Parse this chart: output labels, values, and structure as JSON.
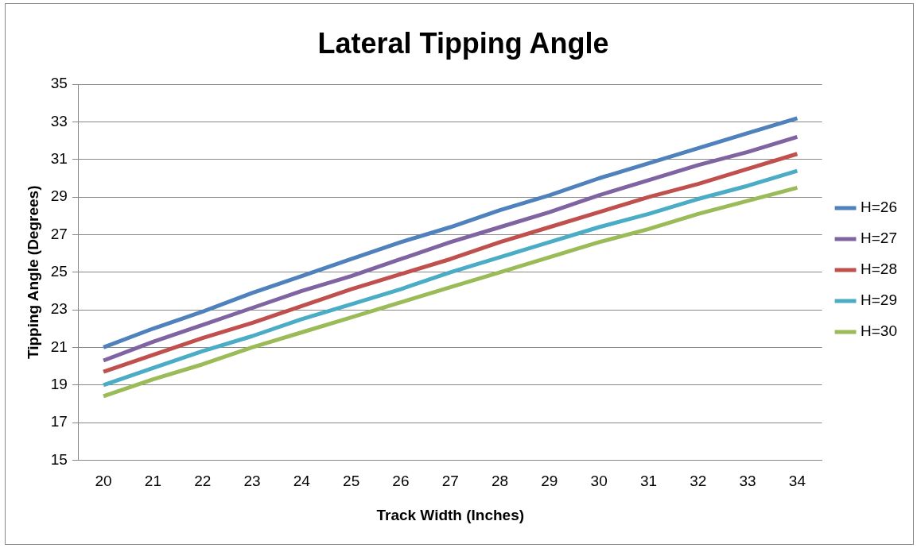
{
  "chart_data": {
    "type": "line",
    "title": "Lateral Tipping Angle",
    "xlabel": "Track Width (Inches)",
    "ylabel": "Tipping Angle (Degrees)",
    "categories": [
      "20",
      "21",
      "22",
      "23",
      "24",
      "25",
      "26",
      "27",
      "28",
      "29",
      "30",
      "31",
      "32",
      "33",
      "34"
    ],
    "series": [
      {
        "name": "H=26",
        "color": "#4f81bd",
        "values": [
          21.0,
          22.0,
          22.9,
          23.9,
          24.8,
          25.7,
          26.6,
          27.4,
          28.3,
          29.1,
          30.0,
          30.8,
          31.6,
          32.4,
          33.2
        ]
      },
      {
        "name": "H=27",
        "color": "#8064a2",
        "values": [
          20.3,
          21.3,
          22.2,
          23.1,
          24.0,
          24.8,
          25.7,
          26.6,
          27.4,
          28.2,
          29.1,
          29.9,
          30.7,
          31.4,
          32.2
        ]
      },
      {
        "name": "H=28",
        "color": "#c0504d",
        "values": [
          19.7,
          20.6,
          21.5,
          22.3,
          23.2,
          24.1,
          24.9,
          25.7,
          26.6,
          27.4,
          28.2,
          29.0,
          29.7,
          30.5,
          31.3
        ]
      },
      {
        "name": "H=29",
        "color": "#4bacc6",
        "values": [
          19.0,
          19.9,
          20.8,
          21.6,
          22.5,
          23.3,
          24.1,
          25.0,
          25.8,
          26.6,
          27.4,
          28.1,
          28.9,
          29.6,
          30.4
        ]
      },
      {
        "name": "H=30",
        "color": "#9bbb59",
        "values": [
          18.4,
          19.3,
          20.1,
          21.0,
          21.8,
          22.6,
          23.4,
          24.2,
          25.0,
          25.8,
          26.6,
          27.3,
          28.1,
          28.8,
          29.5
        ]
      }
    ],
    "ylim": [
      15,
      35
    ],
    "yticks": [
      15,
      17,
      19,
      21,
      23,
      25,
      27,
      29,
      31,
      33,
      35
    ],
    "grid": "y",
    "legend": "right",
    "marker": "none",
    "line_style": "solid"
  }
}
